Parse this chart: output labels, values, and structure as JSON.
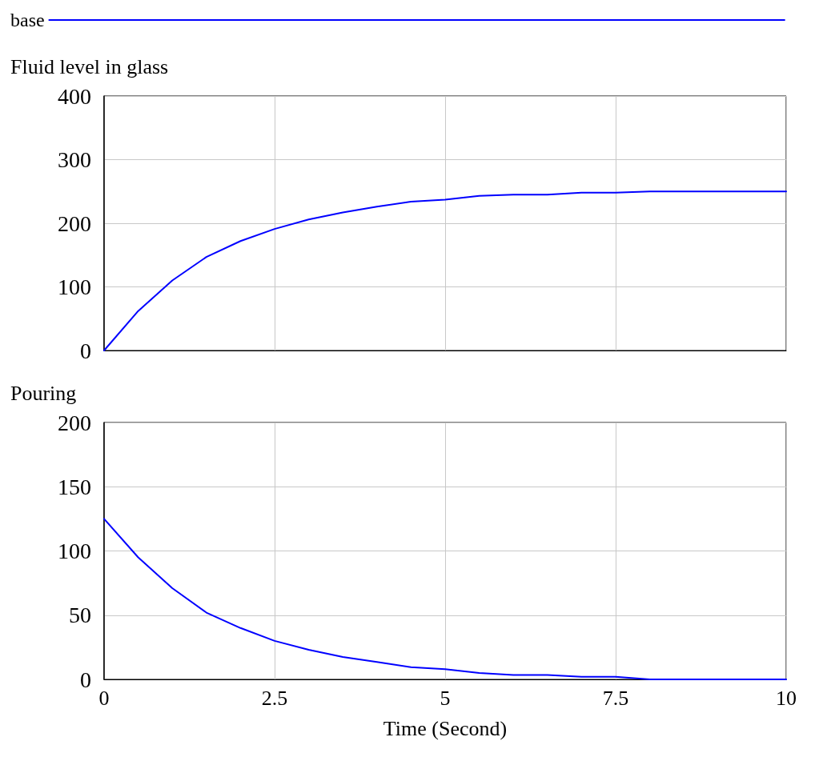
{
  "chart_data": [
    {
      "type": "line",
      "title": "Fluid level in glass",
      "x": [
        0,
        0.5,
        1,
        1.5,
        2,
        2.5,
        3,
        3.5,
        4,
        4.5,
        5,
        5.5,
        6,
        6.5,
        7,
        7.5,
        8,
        8.5,
        9,
        9.5,
        10
      ],
      "series": [
        {
          "name": "base",
          "color": "#0000ff",
          "values": [
            0,
            62,
            110,
            147,
            172,
            191,
            206,
            217,
            226,
            234,
            237,
            243,
            245,
            245,
            248,
            248,
            250,
            250,
            250,
            250,
            250
          ]
        }
      ],
      "xlim": [
        0,
        10
      ],
      "xticks": [
        0,
        2.5,
        5,
        7.5,
        10
      ],
      "ylim": [
        0,
        400
      ],
      "yticks": [
        0,
        100,
        200,
        300,
        400
      ],
      "grid": true,
      "legend": "top left",
      "tick_labels": "y",
      "marker": "none",
      "line_style": "solid"
    },
    {
      "type": "line",
      "title": "Pouring",
      "xlabel": "Time (Second)",
      "x": [
        0,
        0.5,
        1,
        1.5,
        2,
        2.5,
        3,
        3.5,
        4,
        4.5,
        5,
        5.5,
        6,
        6.5,
        7,
        7.5,
        8,
        8.5,
        9,
        9.5,
        10
      ],
      "series": [
        {
          "color": "#0000ff",
          "values": [
            125,
            95,
            71,
            52,
            40,
            30,
            23,
            17.5,
            13.5,
            9.5,
            8,
            5,
            3.5,
            3.5,
            2,
            2,
            0,
            0,
            0,
            0,
            0
          ]
        }
      ],
      "xlim": [
        0,
        10
      ],
      "xticks": [
        0,
        2.5,
        5,
        7.5,
        10
      ],
      "ylim": [
        0,
        200
      ],
      "yticks": [
        0,
        50,
        100,
        150,
        200
      ],
      "grid": true,
      "marker": "none",
      "line_style": "solid"
    }
  ]
}
